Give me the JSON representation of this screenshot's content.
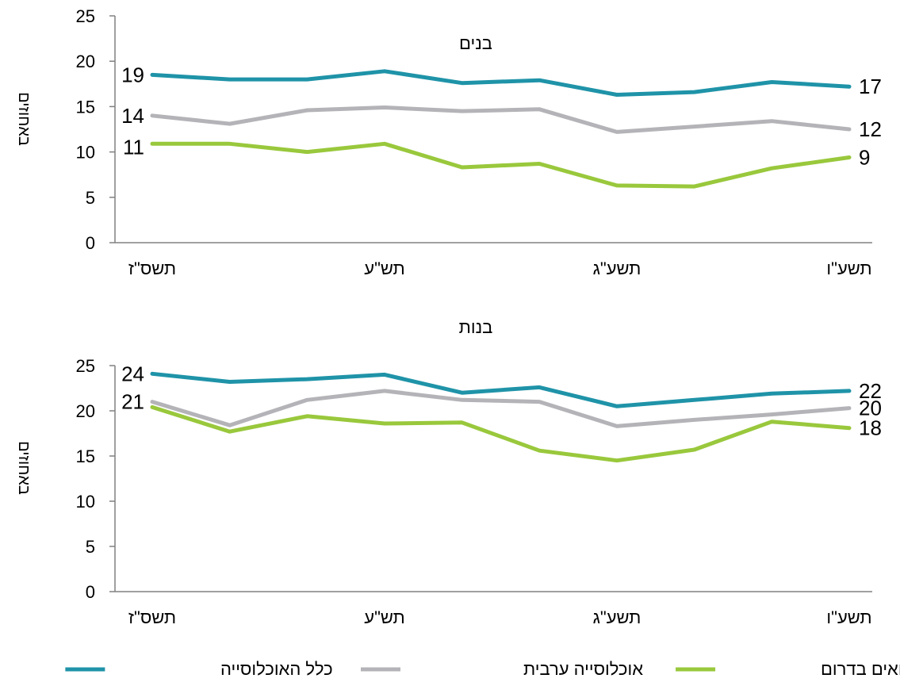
{
  "chart_data": [
    {
      "type": "line",
      "title": "בנים",
      "ylabel": "באחוזים",
      "ylim": [
        0,
        25
      ],
      "yticks": [
        "0",
        "5",
        "10",
        "15",
        "20",
        "25"
      ],
      "x": [
        "תשס\"ז",
        "",
        "",
        "תש\"ע",
        "",
        "",
        "תשע\"ג",
        "",
        "",
        "תשע\"ו"
      ],
      "xtick_labels": [
        "תשס\"ז",
        "תש\"ע",
        "תשע\"ג",
        "תשע\"ו"
      ],
      "series": [
        {
          "name": "כלל האוכלוסייה",
          "color": "#1f93a8",
          "values": [
            18.5,
            18.0,
            18.0,
            18.9,
            17.6,
            17.9,
            16.3,
            16.6,
            17.7,
            17.2
          ],
          "start_label": "19",
          "end_label": "17"
        },
        {
          "name": "אוכלוסייה ערבית",
          "color": "#b4b4b8",
          "values": [
            14.0,
            13.1,
            14.6,
            14.9,
            14.5,
            14.7,
            12.2,
            12.8,
            13.4,
            12.5
          ],
          "start_label": "14",
          "end_label": "12"
        },
        {
          "name": "בדואים בדרום",
          "color": "#99c83c",
          "values": [
            10.9,
            10.9,
            10.0,
            10.9,
            8.3,
            8.7,
            6.3,
            6.2,
            8.2,
            9.4
          ],
          "start_label": "11",
          "end_label": "9"
        }
      ],
      "grid": false
    },
    {
      "type": "line",
      "title": "בנות",
      "ylabel": "באחוזים",
      "ylim": [
        0,
        25
      ],
      "yticks": [
        "0",
        "5",
        "10",
        "15",
        "20",
        "25"
      ],
      "x": [
        "תשס\"ז",
        "",
        "",
        "תש\"ע",
        "",
        "",
        "תשע\"ג",
        "",
        "",
        "תשע\"ו"
      ],
      "xtick_labels": [
        "תשס\"ז",
        "תש\"ע",
        "תשע\"ג",
        "תשע\"ו"
      ],
      "series": [
        {
          "name": "כלל האוכלוסייה",
          "color": "#1f93a8",
          "values": [
            24.1,
            23.2,
            23.5,
            24.0,
            22.0,
            22.6,
            20.5,
            21.2,
            21.9,
            22.2
          ],
          "start_label": "24",
          "end_label": "22"
        },
        {
          "name": "אוכלוסייה ערבית",
          "color": "#b4b4b8",
          "values": [
            21.0,
            18.4,
            21.2,
            22.2,
            21.2,
            21.0,
            18.3,
            19.0,
            19.6,
            20.3
          ],
          "start_label": "21",
          "end_label": "20"
        },
        {
          "name": "בדואים בדרום",
          "color": "#99c83c",
          "values": [
            20.4,
            17.7,
            19.4,
            18.6,
            18.7,
            15.6,
            14.5,
            15.7,
            18.8,
            18.1
          ],
          "start_label": "",
          "end_label": "18"
        }
      ],
      "grid": false
    }
  ],
  "legend": {
    "placement": "bottom",
    "items": [
      {
        "label": "כלל האוכלוסייה",
        "color": "#1f93a8"
      },
      {
        "label": "אוכלוסייה ערבית",
        "color": "#b4b4b8"
      },
      {
        "label": "בדואים בדרום",
        "color": "#99c83c"
      }
    ]
  }
}
